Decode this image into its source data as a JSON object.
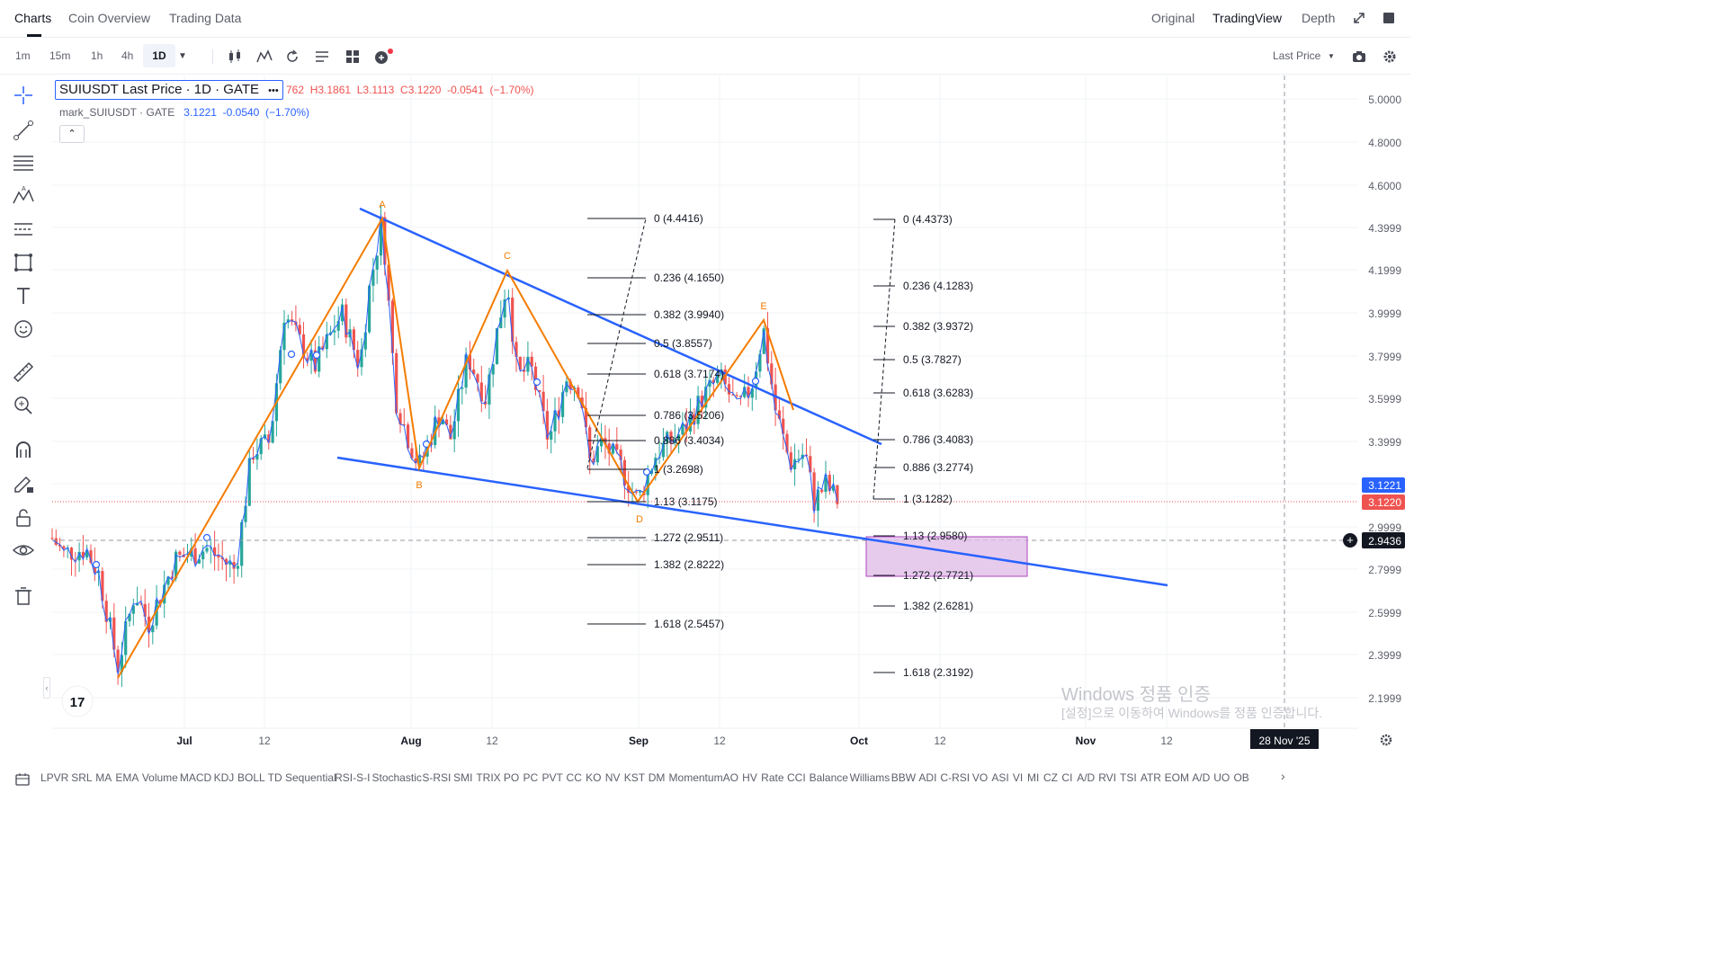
{
  "top_tabs": [
    "Charts",
    "Coin Overview",
    "Trading Data"
  ],
  "view_options": [
    "Original",
    "TradingView",
    "Depth"
  ],
  "intervals": [
    "1m",
    "15m",
    "1h",
    "4h",
    "1D"
  ],
  "price_type": "Last Price",
  "legend": {
    "symbol": "SUIUSDT Last Price · 1D · GATE",
    "more": "•••",
    "ohlc_prefix": "762",
    "high": "H3.1861",
    "low": "L3.1113",
    "close": "C3.1220",
    "change": "-0.0541",
    "change_pct": "(−1.70%)",
    "mark_symbol": "mark_SUIUSDT",
    "mark_exchange": "GATE",
    "mark_price": "3.1221",
    "mark_change": "-0.0540",
    "mark_change_pct": "(−1.70%)"
  },
  "collapse_label": "⌃",
  "price_axis": {
    "labels": [
      "5.0000",
      "4.8000",
      "4.6000",
      "4.3999",
      "4.1999",
      "3.9999",
      "3.7999",
      "3.5999",
      "3.3999",
      "2.9999",
      "2.7999",
      "2.5999",
      "2.3999",
      "2.1999"
    ],
    "mark_price_tag": "3.1221",
    "last_price_tag": "3.1220",
    "crosshair_tag": "2.9436",
    "plus": "+"
  },
  "time_axis": {
    "labels": [
      "Jul",
      "12",
      "Aug",
      "12",
      "Sep",
      "12",
      "Oct",
      "12",
      "Nov",
      "12"
    ],
    "crosshair_tag": "28 Nov '25"
  },
  "pattern_labels": [
    "A",
    "B",
    "C",
    "D",
    "E"
  ],
  "fib_left": [
    "0 (4.4416)",
    "0.236 (4.1650)",
    "0.382 (3.9940)",
    "0.5 (3.8557)",
    "0.618 (3.7174)",
    "0.786 (3.5206)",
    "0.886 (3.4034)",
    "1 (3.2698)",
    "1.13 (3.1175)",
    "1.272 (2.9511)",
    "1.382 (2.8222)",
    "1.618 (2.5457)"
  ],
  "fib_right": [
    "0 (4.4373)",
    "0.236 (4.1283)",
    "0.382 (3.9372)",
    "0.5 (3.7827)",
    "0.618 (3.6283)",
    "0.786 (3.4083)",
    "0.886 (3.2774)",
    "1 (3.1282)",
    "1.13 (2.9580)",
    "1.272 (2.7721)",
    "1.382 (2.6281)",
    "1.618 (2.3192)"
  ],
  "tv_logo": "17",
  "watermark": {
    "line1": "Windows 정품 인증",
    "line2": "[설정]으로 이동하여 Windows를 정품 인증합니다."
  },
  "indicators": [
    "LPVR",
    "SRL",
    "MA",
    "EMA",
    "Volume",
    "MACD",
    "KDJ",
    "BOLL",
    "TD Sequential",
    "RSI-S-I",
    "Stochastic",
    "S-RSI",
    "SMI",
    "TRIX",
    "PO",
    "PC",
    "PVT",
    "CC",
    "KO",
    "NV",
    "KST",
    "DM",
    "Momentum",
    "AO",
    "HV",
    "Rate",
    "CCI",
    "Balance",
    "Williams",
    "BBW",
    "ADI",
    "C-RSI",
    "VO",
    "ASI",
    "VI",
    "MI",
    "CZ",
    "CI",
    "A/D",
    "RVI",
    "TSI",
    "ATR",
    "EOM",
    "A/D",
    "UO",
    "OB"
  ],
  "colors": {
    "up": "#26a69a",
    "down": "#ef5350",
    "pattern": "#f57c00",
    "trendline": "#2962ff",
    "mark_line": "#2962ff",
    "zone": "#e1bee7"
  },
  "sidebar_icons": [
    "crosshair-icon",
    "trendline-icon",
    "fib-retracement-icon",
    "pattern-icon",
    "projection-icon",
    "rectangle-icon",
    "text-icon",
    "emoji-icon",
    "ruler-icon",
    "zoom-icon",
    "magnet-icon",
    "draw-lock-icon",
    "lock-icon",
    "eye-icon",
    "trash-icon"
  ],
  "chart_data": {
    "type": "candlestick",
    "symbol": "SUIUSDT",
    "interval": "1D",
    "ylim": [
      2.1,
      5.05
    ],
    "last_close": 3.122,
    "patterns": [
      {
        "point": "A",
        "price": 4.44
      },
      {
        "point": "B",
        "price": 3.28
      },
      {
        "point": "C",
        "price": 4.16
      },
      {
        "point": "D",
        "price": 3.12
      },
      {
        "point": "E",
        "price": 3.92
      }
    ]
  }
}
